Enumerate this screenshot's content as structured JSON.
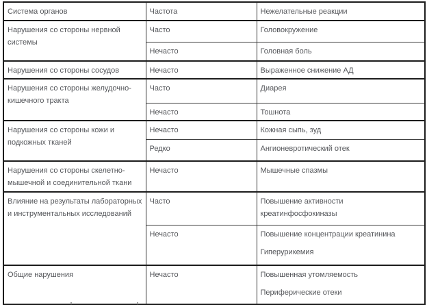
{
  "table": {
    "columns": [
      "Система органов",
      "Частота",
      "Нежелательные реакции"
    ],
    "groups": [
      {
        "system": "Нарушения со стороны нервной системы",
        "rows": [
          {
            "frequency": "Часто",
            "reactions": [
              "Головокружение"
            ]
          },
          {
            "frequency": "Нечасто",
            "reactions": [
              "Головная боль"
            ]
          }
        ]
      },
      {
        "system": "Нарушения со стороны сосудов",
        "rows": [
          {
            "frequency": "Нечасто",
            "reactions": [
              "Выраженное снижение АД"
            ]
          }
        ]
      },
      {
        "system": "Нарушения со стороны желудочно-кишечного тракта",
        "rows": [
          {
            "frequency": "Часто",
            "reactions": [
              "Диарея"
            ]
          },
          {
            "frequency": "Нечасто",
            "reactions": [
              "Тошнота"
            ]
          }
        ]
      },
      {
        "system": "Нарушения со стороны кожи и подкожных тканей",
        "rows": [
          {
            "frequency": "Нечасто",
            "reactions": [
              "Кожная сыпь, зуд"
            ]
          },
          {
            "frequency": "Редко",
            "reactions": [
              "Ангионевротический отек"
            ]
          }
        ]
      },
      {
        "system": "Нарушения со стороны скелетно-мышечной и соединительной ткани",
        "rows": [
          {
            "frequency": "Нечасто",
            "reactions": [
              "Мышечные спазмы"
            ]
          }
        ]
      },
      {
        "system": "Влияние на результаты лабораторных и инструментальных исследований",
        "rows": [
          {
            "frequency": "Часто",
            "reactions": [
              "Повышение активности креатинфосфокиназы"
            ]
          },
          {
            "frequency": "Нечасто",
            "reactions": [
              "Повышение концентрации креатинина",
              "Гиперурикемия"
            ]
          }
        ]
      },
      {
        "system": "Общие нарушения",
        "rows": [
          {
            "frequency": "Нечасто",
            "reactions": [
              "Повышенная утомляемость",
              "Периферические отеки"
            ]
          }
        ]
      }
    ]
  },
  "colors": {
    "text": "#54565a",
    "border_thick": "#1c1c1c",
    "border_thin": "#3f3f3f",
    "background": "#ffffff"
  }
}
